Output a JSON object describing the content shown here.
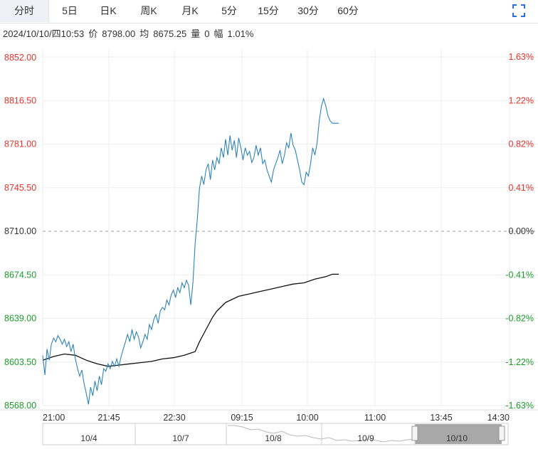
{
  "tabs": [
    {
      "label": "分时",
      "active": true
    },
    {
      "label": "5日",
      "active": false
    },
    {
      "label": "日K",
      "active": false
    },
    {
      "label": "周K",
      "active": false
    },
    {
      "label": "月K",
      "active": false
    },
    {
      "label": "5分",
      "active": false
    },
    {
      "label": "15分",
      "active": false
    },
    {
      "label": "30分",
      "active": false
    },
    {
      "label": "60分",
      "active": false
    }
  ],
  "info": {
    "datetime": "2024/10/10/四10:53",
    "price_label": "价",
    "price": "8798.00",
    "avg_label": "均",
    "avg": "8675.25",
    "volume_label": "量",
    "volume": "0",
    "change_label": "幅",
    "change": "1.01%"
  },
  "colors": {
    "up": "#e8332a",
    "down": "#1a9d2a",
    "price_line": "#2f83b8",
    "avg_line": "#111111",
    "grid": "#eeeeee"
  },
  "chart_data": {
    "type": "line",
    "base_price": 8710.0,
    "ylim": [
      8568.0,
      8852.0
    ],
    "y_ticks": [
      "8852.00",
      "8816.50",
      "8781.00",
      "8745.50",
      "8710.00",
      "8674.50",
      "8639.00",
      "8603.50",
      "8568.00"
    ],
    "y_tick_values": [
      8852.0,
      8816.5,
      8781.0,
      8745.5,
      8710.0,
      8674.5,
      8639.0,
      8603.5,
      8568.0
    ],
    "pct_ticks": [
      "1.63%",
      "1.22%",
      "0.82%",
      "0.41%",
      "0.00%",
      "-0.41%",
      "-0.82%",
      "-1.22%",
      "-1.63%"
    ],
    "x_ticks": [
      "21:00",
      "21:45",
      "22:30",
      "09:15",
      "10:00",
      "11:00",
      "13:45",
      "14:30"
    ],
    "series": [
      {
        "x": [
          0,
          2,
          4,
          6,
          8,
          10,
          12,
          14,
          16,
          18,
          20,
          22,
          24,
          26,
          28,
          30,
          32,
          34,
          36,
          38,
          40,
          42,
          44,
          46,
          48,
          50,
          52,
          54,
          56,
          58,
          60,
          62,
          64,
          66,
          68,
          70,
          72,
          74,
          76,
          78,
          80,
          82,
          84,
          86,
          88,
          90,
          92,
          94,
          96,
          98,
          100,
          102,
          104,
          106,
          108,
          110,
          112,
          114,
          116,
          118,
          120,
          122,
          124,
          126,
          128,
          130,
          132,
          134,
          136,
          138,
          140,
          142,
          144,
          146,
          148,
          150,
          152,
          154,
          156,
          158,
          160,
          162,
          164,
          166,
          168,
          170,
          172,
          174,
          176,
          178,
          180,
          182,
          184,
          186,
          188,
          190,
          192,
          194,
          196,
          198,
          200,
          202,
          204,
          206,
          208,
          210,
          212,
          214,
          216,
          218,
          220,
          222,
          224,
          226,
          228,
          230,
          232,
          234,
          236,
          238,
          240,
          242,
          244,
          246,
          248,
          250,
          252,
          254,
          256,
          258,
          260,
          262,
          264,
          266,
          268,
          270,
          272,
          274,
          276,
          278,
          280,
          282,
          284,
          286,
          288,
          290,
          292,
          294,
          296,
          298,
          300,
          302,
          304,
          306,
          308,
          310,
          312
        ],
        "values": [
          8598,
          8610,
          8605,
          8620,
          8618,
          8625,
          8615,
          8622,
          8612,
          8620,
          8608,
          8600,
          8590,
          8580,
          8570,
          8585,
          8575,
          8590,
          8580,
          8595,
          8600,
          8598,
          8605,
          8602,
          8608,
          8600,
          8612,
          8618,
          8625,
          8620,
          8615,
          8628,
          8620,
          8630,
          8625,
          8615,
          8625,
          8632,
          8630,
          8640,
          8645,
          8650,
          8648,
          8655,
          8660,
          8650,
          8662,
          8665,
          8672,
          8668,
          8660,
          8650,
          8690,
          8720,
          8745,
          8760,
          8770,
          8760,
          8775,
          8765,
          8772,
          8780,
          8785,
          8778,
          8790,
          8780,
          8788,
          8775,
          8782,
          8790,
          8780,
          8775,
          8778,
          8768,
          8770,
          8780,
          8775,
          8770,
          8760,
          8752,
          8755,
          8762,
          8760,
          8768,
          8772,
          8775,
          8784,
          8778,
          8782,
          8770,
          8755,
          8750,
          8752,
          8760,
          8758,
          8768,
          8772,
          8785,
          8800,
          8808,
          8815,
          8810,
          8800,
          8797,
          8798,
          8798,
          8798,
          8798,
          8798,
          8798,
          8798,
          8798,
          8798,
          8798,
          8798,
          8798,
          8798,
          8798,
          8798,
          8798,
          8798,
          8798,
          8798,
          8798,
          8798,
          8798,
          8798,
          8798,
          8798,
          8798,
          8798,
          8798,
          8798,
          8798,
          8798,
          8798,
          8798,
          8798,
          8798,
          8798,
          8798,
          8798,
          8798,
          8798,
          8798,
          8798,
          8798,
          8798,
          8798,
          8798,
          8798,
          8798,
          8798,
          8798,
          8798,
          8798,
          8798
        ]
      }
    ],
    "price_points": [
      [
        0,
        8609
      ],
      [
        1,
        8593
      ],
      [
        2,
        8614
      ],
      [
        3,
        8605
      ],
      [
        4,
        8618
      ],
      [
        5,
        8623
      ],
      [
        6,
        8620
      ],
      [
        7,
        8625
      ],
      [
        8,
        8622
      ],
      [
        9,
        8618
      ],
      [
        10,
        8622
      ],
      [
        11,
        8616
      ],
      [
        12,
        8620
      ],
      [
        13,
        8612
      ],
      [
        14,
        8618
      ],
      [
        15,
        8606
      ],
      [
        16,
        8598
      ],
      [
        17,
        8592
      ],
      [
        18,
        8597
      ],
      [
        19,
        8586
      ],
      [
        20,
        8578
      ],
      [
        21,
        8569
      ],
      [
        22,
        8583
      ],
      [
        23,
        8576
      ],
      [
        24,
        8588
      ],
      [
        25,
        8580
      ],
      [
        26,
        8592
      ],
      [
        27,
        8585
      ],
      [
        28,
        8598
      ],
      [
        29,
        8596
      ],
      [
        30,
        8602
      ],
      [
        31,
        8598
      ],
      [
        32,
        8604
      ],
      [
        33,
        8600
      ],
      [
        34,
        8606
      ],
      [
        35,
        8600
      ],
      [
        36,
        8608
      ],
      [
        37,
        8614
      ],
      [
        38,
        8620
      ],
      [
        39,
        8626
      ],
      [
        40,
        8620
      ],
      [
        41,
        8630
      ],
      [
        42,
        8622
      ],
      [
        43,
        8628
      ],
      [
        44,
        8624
      ],
      [
        45,
        8615
      ],
      [
        46,
        8620
      ],
      [
        47,
        8626
      ],
      [
        48,
        8622
      ],
      [
        49,
        8634
      ],
      [
        50,
        8630
      ],
      [
        51,
        8638
      ],
      [
        52,
        8642
      ],
      [
        53,
        8635
      ],
      [
        54,
        8645
      ],
      [
        55,
        8648
      ],
      [
        56,
        8646
      ],
      [
        57,
        8654
      ],
      [
        58,
        8650
      ],
      [
        59,
        8658
      ],
      [
        60,
        8662
      ],
      [
        61,
        8656
      ],
      [
        62,
        8664
      ],
      [
        63,
        8660
      ],
      [
        64,
        8668
      ],
      [
        65,
        8664
      ],
      [
        66,
        8670
      ],
      [
        67,
        8666
      ],
      [
        68,
        8650
      ],
      [
        69,
        8668
      ],
      [
        70,
        8700
      ],
      [
        71,
        8720
      ],
      [
        72,
        8745
      ],
      [
        73,
        8755
      ],
      [
        74,
        8748
      ],
      [
        75,
        8760
      ],
      [
        76,
        8765
      ],
      [
        77,
        8752
      ],
      [
        78,
        8768
      ],
      [
        79,
        8760
      ],
      [
        80,
        8770
      ],
      [
        81,
        8765
      ],
      [
        82,
        8778
      ],
      [
        83,
        8770
      ],
      [
        84,
        8785
      ],
      [
        85,
        8772
      ],
      [
        86,
        8788
      ],
      [
        87,
        8776
      ],
      [
        88,
        8784
      ],
      [
        89,
        8770
      ],
      [
        90,
        8786
      ],
      [
        91,
        8778
      ],
      [
        92,
        8768
      ],
      [
        93,
        8778
      ],
      [
        94,
        8772
      ],
      [
        95,
        8775
      ],
      [
        96,
        8766
      ],
      [
        97,
        8770
      ],
      [
        98,
        8780
      ],
      [
        99,
        8772
      ],
      [
        100,
        8778
      ],
      [
        101,
        8765
      ],
      [
        102,
        8768
      ],
      [
        103,
        8760
      ],
      [
        104,
        8755
      ],
      [
        105,
        8750
      ],
      [
        106,
        8760
      ],
      [
        107,
        8765
      ],
      [
        108,
        8770
      ],
      [
        109,
        8776
      ],
      [
        110,
        8765
      ],
      [
        111,
        8772
      ],
      [
        112,
        8782
      ],
      [
        113,
        8778
      ],
      [
        114,
        8790
      ],
      [
        115,
        8780
      ],
      [
        116,
        8776
      ],
      [
        117,
        8768
      ],
      [
        118,
        8760
      ],
      [
        119,
        8750
      ],
      [
        120,
        8748
      ],
      [
        121,
        8758
      ],
      [
        122,
        8755
      ],
      [
        123,
        8765
      ],
      [
        124,
        8778
      ],
      [
        125,
        8772
      ],
      [
        126,
        8782
      ],
      [
        127,
        8800
      ],
      [
        128,
        8812
      ],
      [
        129,
        8818
      ],
      [
        130,
        8812
      ],
      [
        131,
        8804
      ],
      [
        132,
        8800
      ],
      [
        133,
        8798
      ],
      [
        134,
        8798
      ],
      [
        135,
        8798
      ],
      [
        136,
        8798
      ]
    ],
    "avg_points": [
      [
        0,
        8605
      ],
      [
        5,
        8608
      ],
      [
        10,
        8610
      ],
      [
        15,
        8609
      ],
      [
        20,
        8605
      ],
      [
        25,
        8602
      ],
      [
        30,
        8600
      ],
      [
        35,
        8601
      ],
      [
        40,
        8602
      ],
      [
        45,
        8603
      ],
      [
        50,
        8604
      ],
      [
        55,
        8606
      ],
      [
        60,
        8607
      ],
      [
        65,
        8609
      ],
      [
        70,
        8612
      ],
      [
        72,
        8620
      ],
      [
        75,
        8630
      ],
      [
        78,
        8640
      ],
      [
        80,
        8645
      ],
      [
        84,
        8652
      ],
      [
        90,
        8657
      ],
      [
        95,
        8659
      ],
      [
        100,
        8661
      ],
      [
        105,
        8663
      ],
      [
        110,
        8665
      ],
      [
        115,
        8667
      ],
      [
        120,
        8668
      ],
      [
        125,
        8671
      ],
      [
        130,
        8673
      ],
      [
        133,
        8675
      ],
      [
        136,
        8675
      ]
    ],
    "total_points": 292
  },
  "navigator": {
    "labels": [
      "10/4",
      "10/7",
      "10/8",
      "10/9",
      "10/10"
    ]
  }
}
